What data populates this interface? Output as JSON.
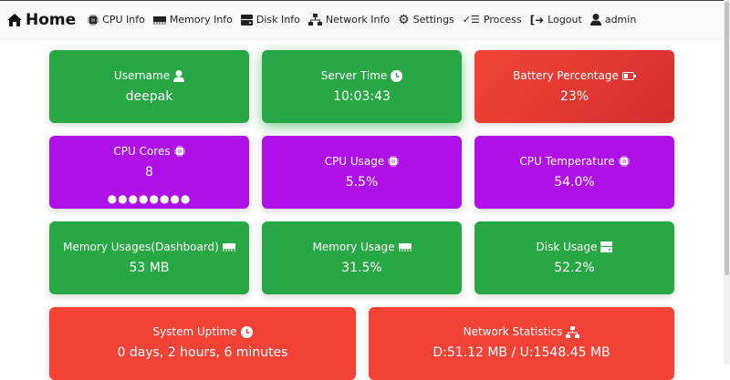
{
  "nav": {
    "brand": "Home",
    "items": [
      {
        "label": "CPU Info",
        "icon": "chip-icon"
      },
      {
        "label": "Memory Info",
        "icon": "memory-icon"
      },
      {
        "label": "Disk Info",
        "icon": "hdd-icon"
      },
      {
        "label": "Network Info",
        "icon": "network-icon"
      },
      {
        "label": "Settings",
        "icon": "gear-icon"
      },
      {
        "label": "Process",
        "icon": "list-check-icon"
      },
      {
        "label": "Logout",
        "icon": "logout-icon"
      },
      {
        "label": "admin",
        "icon": "user-icon"
      }
    ]
  },
  "cards": [
    {
      "label": "Username",
      "value": "deepak",
      "color": "#28a745"
    },
    {
      "label": "Server Time",
      "value": "10:03:43",
      "color": "#28a745"
    },
    {
      "label": "Battery Percentage",
      "value": "23%",
      "color": "#f44336"
    },
    {
      "label": "CPU Cores",
      "value": "8",
      "dots": "●●●●●●●●",
      "color": "#b010e8"
    },
    {
      "label": "CPU Usage",
      "value": "5.5%",
      "color": "#b010e8"
    },
    {
      "label": "CPU Temperature",
      "value": "54.0%",
      "color": "#b010e8"
    },
    {
      "label": "Memory Usages(Dashboard)",
      "value": "53 MB",
      "color": "#28a745"
    },
    {
      "label": "Memory Usage",
      "value": "31.5%",
      "color": "#28a745"
    },
    {
      "label": "Disk Usage",
      "value": "52.2%",
      "color": "#28a745"
    },
    {
      "label": "System Uptime",
      "value": "0 days, 2 hours, 6 minutes",
      "color": "#f44336"
    },
    {
      "label": "Network Statistics",
      "value": "D:51.12 MB / U:1548.45 MB",
      "color": "#f44336"
    }
  ]
}
